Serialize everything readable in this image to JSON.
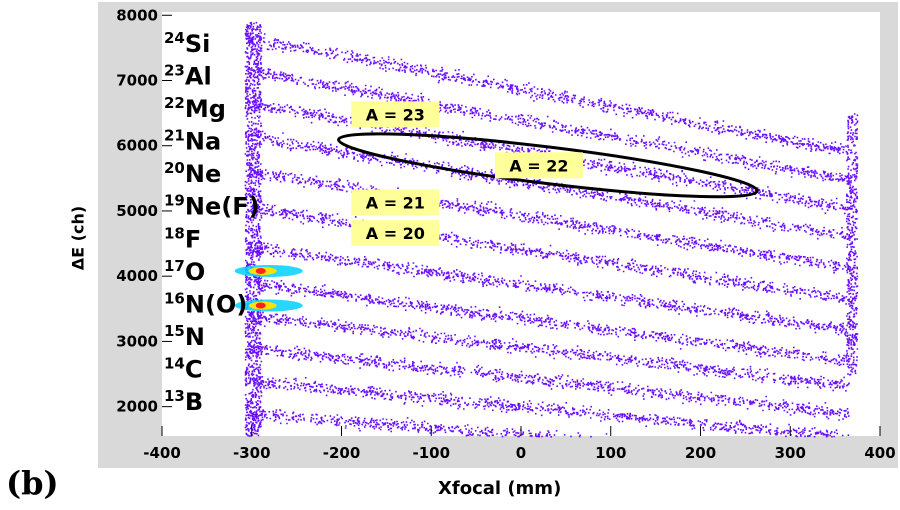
{
  "chart_data": {
    "type": "heatmap",
    "panel_label": "(b)",
    "xlabel": "Xfocal (mm)",
    "ylabel": "ΔE (ch)",
    "xlim": [
      -400,
      400
    ],
    "ylim": [
      1550,
      8050
    ],
    "x_ticks": [
      "-400",
      "-300",
      "-200",
      "-100",
      "0",
      "100",
      "200",
      "300",
      "400"
    ],
    "y_ticks": [
      "2000",
      "3000",
      "4000",
      "5000",
      "6000",
      "7000",
      "8000"
    ],
    "colors": {
      "counts": "#6a0dff",
      "hot": "#ff2020",
      "warm": "#ffe000",
      "mid": "#00d0ff",
      "label_box": "#ffff99",
      "frame": "#d9d9d9"
    },
    "isotopes": [
      {
        "mass": "24",
        "symbol": "Si",
        "band_y_at_minus300": 7650,
        "slope_per_mm": -2.6
      },
      {
        "mass": "23",
        "symbol": "Al",
        "band_y_at_minus300": 7150,
        "slope_per_mm": -2.5
      },
      {
        "mass": "22",
        "symbol": "Mg",
        "band_y_at_minus300": 6650,
        "slope_per_mm": -2.4
      },
      {
        "mass": "21",
        "symbol": "Na",
        "band_y_at_minus300": 6150,
        "slope_per_mm": -2.3
      },
      {
        "mass": "20",
        "symbol": "Ne",
        "band_y_at_minus300": 5600,
        "slope_per_mm": -2.2
      },
      {
        "mass": "19",
        "symbol": "Ne(F)",
        "band_y_at_minus300": 5050,
        "slope_per_mm": -2.1
      },
      {
        "mass": "18",
        "symbol": "F",
        "band_y_at_minus300": 4450,
        "slope_per_mm": -1.9
      },
      {
        "mass": "17",
        "symbol": "O",
        "band_y_at_minus300": 3900,
        "slope_per_mm": -1.8
      },
      {
        "mass": "16",
        "symbol": "N(O)",
        "band_y_at_minus300": 3400,
        "slope_per_mm": -1.6
      },
      {
        "mass": "15",
        "symbol": "N",
        "band_y_at_minus300": 2900,
        "slope_per_mm": -1.5
      },
      {
        "mass": "14",
        "symbol": "C",
        "band_y_at_minus300": 2400,
        "slope_per_mm": -1.3
      },
      {
        "mass": "13",
        "symbol": "B",
        "band_y_at_minus300": 1900,
        "slope_per_mm": -1.1
      }
    ],
    "hotspots": [
      {
        "x": -290,
        "y": 4080
      },
      {
        "x": -290,
        "y": 3550
      }
    ],
    "annotations": [
      {
        "text": "A = 23",
        "x": -140,
        "y": 6480
      },
      {
        "text": "A = 22",
        "x": 20,
        "y": 5700
      },
      {
        "text": "A = 21",
        "x": -140,
        "y": 5130
      },
      {
        "text": "A = 20",
        "x": -140,
        "y": 4660
      }
    ],
    "ellipse": {
      "center_x": 30,
      "center_y": 5700,
      "rx_mm": 235,
      "ry": 280,
      "rotation_deg": 7
    }
  }
}
